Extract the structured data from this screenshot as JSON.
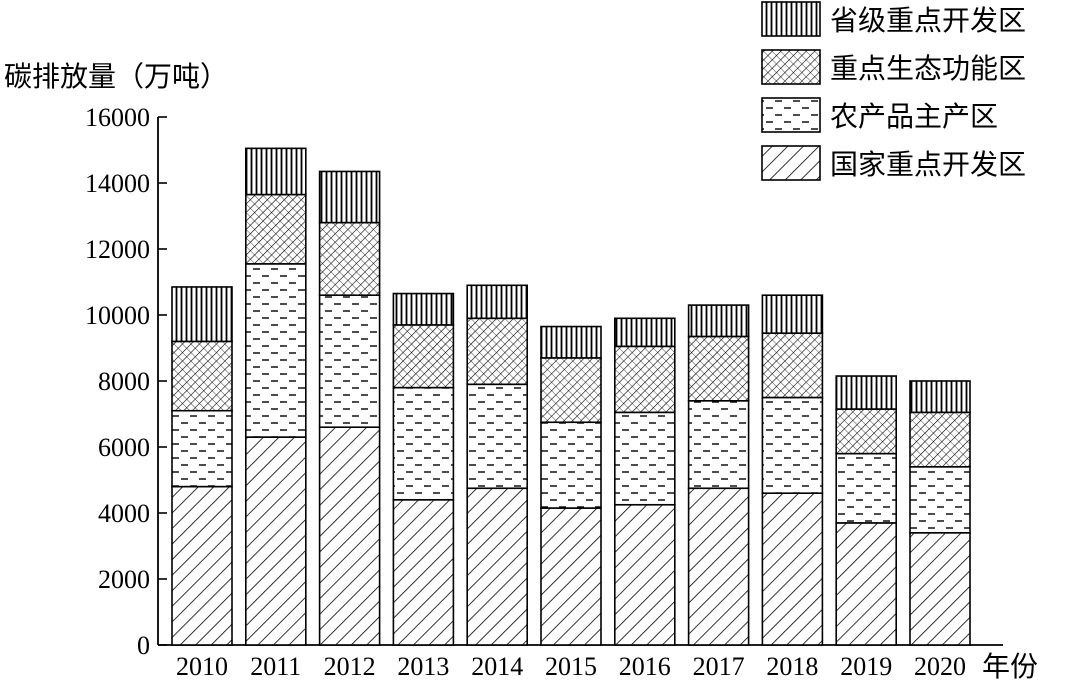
{
  "chart_data": {
    "type": "bar",
    "stacked": true,
    "title": "",
    "ylabel": "碳排放量（万吨）",
    "xlabel": "年份",
    "ylim": [
      0,
      16000
    ],
    "yticks": [
      "0",
      "2000",
      "4000",
      "6000",
      "8000",
      "10000",
      "12000",
      "14000",
      "16000"
    ],
    "categories": [
      "2010",
      "2011",
      "2012",
      "2013",
      "2014",
      "2015",
      "2016",
      "2017",
      "2018",
      "2019",
      "2020"
    ],
    "series": [
      {
        "name": "国家重点开发区",
        "pattern": "diagonal",
        "values": [
          4800,
          6300,
          6600,
          4400,
          4750,
          4150,
          4250,
          4750,
          4600,
          3700,
          3400
        ]
      },
      {
        "name": "农产品主产区",
        "pattern": "dashes",
        "values": [
          2300,
          5250,
          4000,
          3400,
          3150,
          2600,
          2800,
          2650,
          2900,
          2100,
          2000
        ]
      },
      {
        "name": "重点生态功能区",
        "pattern": "crosshatch",
        "values": [
          2100,
          2100,
          2200,
          1900,
          2000,
          1950,
          2000,
          1950,
          1950,
          1350,
          1650
        ]
      },
      {
        "name": "省级重点开发区",
        "pattern": "vertical",
        "values": [
          1650,
          1400,
          1550,
          950,
          1000,
          950,
          850,
          950,
          1150,
          1000,
          950
        ]
      }
    ],
    "legend_position": "top-right",
    "grid": false,
    "colors": {
      "ink": "#000000",
      "background": "#ffffff"
    }
  }
}
